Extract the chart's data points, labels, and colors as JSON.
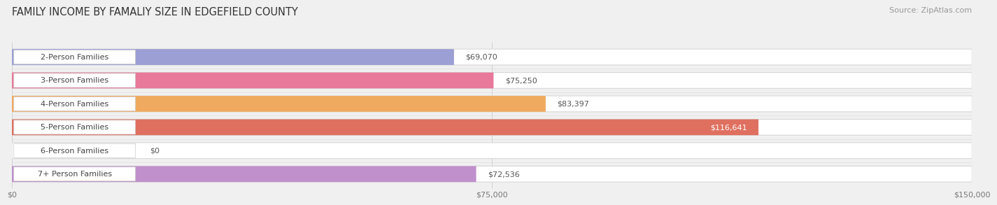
{
  "title": "FAMILY INCOME BY FAMALIY SIZE IN EDGEFIELD COUNTY",
  "source": "Source: ZipAtlas.com",
  "categories": [
    "2-Person Families",
    "3-Person Families",
    "4-Person Families",
    "5-Person Families",
    "6-Person Families",
    "7+ Person Families"
  ],
  "values": [
    69070,
    75250,
    83397,
    116641,
    0,
    72536
  ],
  "bar_colors": [
    "#9b9fd4",
    "#e8799a",
    "#f0aa60",
    "#df7060",
    "#a8c8e8",
    "#c090cc"
  ],
  "value_labels": [
    "$69,070",
    "$75,250",
    "$83,397",
    "$116,641",
    "$0",
    "$72,536"
  ],
  "x_max": 150000,
  "x_tick_labels": [
    "$0",
    "$75,000",
    "$150,000"
  ],
  "bg_color": "#f0f0f0",
  "bar_bg_color": "#ffffff",
  "title_fontsize": 10.5,
  "source_fontsize": 8,
  "label_fontsize": 8,
  "value_fontsize": 8
}
